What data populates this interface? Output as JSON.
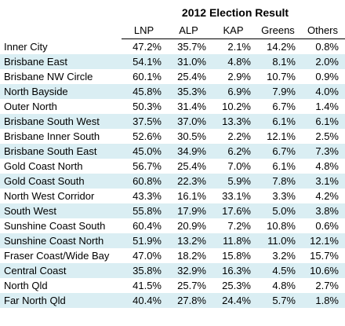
{
  "title": "2012 Election Result",
  "columns": [
    "LNP",
    "ALP",
    "KAP",
    "Greens",
    "Others"
  ],
  "rows": [
    {
      "region": "Inner City",
      "values": [
        "47.2%",
        "35.7%",
        "2.1%",
        "14.2%",
        "0.8%"
      ]
    },
    {
      "region": "Brisbane East",
      "values": [
        "54.1%",
        "31.0%",
        "4.8%",
        "8.1%",
        "2.0%"
      ]
    },
    {
      "region": "Brisbane NW Circle",
      "values": [
        "60.1%",
        "25.4%",
        "2.9%",
        "10.7%",
        "0.9%"
      ]
    },
    {
      "region": "North Bayside",
      "values": [
        "45.8%",
        "35.3%",
        "6.9%",
        "7.9%",
        "4.0%"
      ]
    },
    {
      "region": "Outer North",
      "values": [
        "50.3%",
        "31.4%",
        "10.2%",
        "6.7%",
        "1.4%"
      ]
    },
    {
      "region": "Brisbane South West",
      "values": [
        "37.5%",
        "37.0%",
        "13.3%",
        "6.1%",
        "6.1%"
      ]
    },
    {
      "region": "Brisbane Inner South",
      "values": [
        "52.6%",
        "30.5%",
        "2.2%",
        "12.1%",
        "2.5%"
      ]
    },
    {
      "region": "Brisbane South East",
      "values": [
        "45.0%",
        "34.9%",
        "6.2%",
        "6.7%",
        "7.3%"
      ]
    },
    {
      "region": "Gold Coast North",
      "values": [
        "56.7%",
        "25.4%",
        "7.0%",
        "6.1%",
        "4.8%"
      ]
    },
    {
      "region": "Gold Coast South",
      "values": [
        "60.8%",
        "22.3%",
        "5.9%",
        "7.8%",
        "3.1%"
      ]
    },
    {
      "region": "North West Corridor",
      "values": [
        "43.3%",
        "16.1%",
        "33.1%",
        "3.3%",
        "4.2%"
      ]
    },
    {
      "region": "South West",
      "values": [
        "55.8%",
        "17.9%",
        "17.6%",
        "5.0%",
        "3.8%"
      ]
    },
    {
      "region": "Sunshine Coast South",
      "values": [
        "60.4%",
        "20.9%",
        "7.2%",
        "10.8%",
        "0.6%"
      ]
    },
    {
      "region": "Sunshine Coast North",
      "values": [
        "51.9%",
        "13.2%",
        "11.8%",
        "11.0%",
        "12.1%"
      ]
    },
    {
      "region": "Fraser Coast/Wide Bay",
      "values": [
        "47.0%",
        "18.2%",
        "15.8%",
        "3.2%",
        "15.7%"
      ]
    },
    {
      "region": "Central Coast",
      "values": [
        "35.8%",
        "32.9%",
        "16.3%",
        "4.5%",
        "10.6%"
      ]
    },
    {
      "region": "North Qld",
      "values": [
        "41.5%",
        "25.7%",
        "25.3%",
        "4.8%",
        "2.7%"
      ]
    },
    {
      "region": "Far North Qld",
      "values": [
        "40.4%",
        "27.8%",
        "24.4%",
        "5.7%",
        "1.8%"
      ]
    }
  ],
  "colors": {
    "stripe": "#daeef3",
    "background": "#ffffff"
  }
}
